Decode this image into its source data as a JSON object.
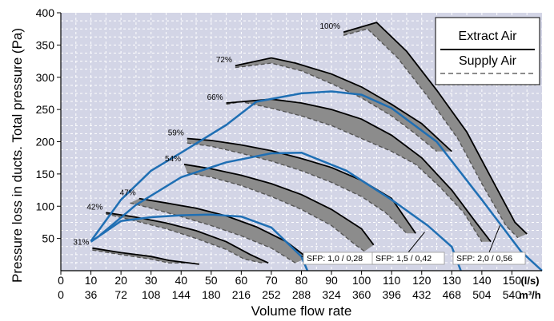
{
  "chart_data": {
    "type": "line",
    "ylabel": "Pressure loss in ducts. Total pressure (Pa)",
    "xlabel": "Volume flow rate",
    "xlim": [
      0,
      160
    ],
    "ylim": [
      0,
      400
    ],
    "x_ticks_ls": [
      "0",
      "10",
      "20",
      "30",
      "40",
      "50",
      "60",
      "70",
      "80",
      "90",
      "100",
      "110",
      "120",
      "130",
      "140",
      "150"
    ],
    "x_ticks_m3h": [
      "0",
      "36",
      "72",
      "108",
      "144",
      "180",
      "216",
      "252",
      "288",
      "324",
      "360",
      "396",
      "432",
      "468",
      "504",
      "540"
    ],
    "x_unit_ls": "(l/s)",
    "x_unit_m3h": "m³/h",
    "y_ticks": [
      "50",
      "100",
      "150",
      "200",
      "250",
      "300",
      "350",
      "400"
    ],
    "grid": true,
    "background_color": "#d3d5e6",
    "grid_color": "#ffffff",
    "legend": {
      "placement": "top-right",
      "entries": [
        {
          "label": "Extract Air",
          "style": "solid",
          "color": "#000000"
        },
        {
          "label": "Supply Air",
          "style": "dashed",
          "color": "#666666"
        }
      ]
    },
    "fan_speed_bands": [
      {
        "label": "31%",
        "extract": [
          [
            10.5,
            35
          ],
          [
            20,
            28
          ],
          [
            30,
            22
          ],
          [
            36,
            16
          ],
          [
            46,
            10
          ]
        ],
        "supply": [
          [
            10.5,
            32
          ],
          [
            20,
            25
          ],
          [
            30,
            18
          ],
          [
            36,
            12
          ],
          [
            43,
            12
          ]
        ]
      },
      {
        "label": "42%",
        "extract": [
          [
            15,
            90
          ],
          [
            25,
            83
          ],
          [
            35,
            74
          ],
          [
            45,
            62
          ],
          [
            55,
            45
          ],
          [
            63,
            25
          ],
          [
            69,
            12
          ]
        ],
        "supply": [
          [
            15,
            88
          ],
          [
            25,
            77
          ],
          [
            35,
            65
          ],
          [
            45,
            50
          ],
          [
            55,
            33
          ],
          [
            61,
            18
          ],
          [
            67,
            12
          ]
        ]
      },
      {
        "label": "47%",
        "extract": [
          [
            26,
            112
          ],
          [
            35,
            105
          ],
          [
            45,
            97
          ],
          [
            55,
            85
          ],
          [
            65,
            68
          ],
          [
            75,
            45
          ],
          [
            82,
            20
          ]
        ],
        "supply": [
          [
            23,
            105
          ],
          [
            30,
            97
          ],
          [
            40,
            84
          ],
          [
            50,
            70
          ],
          [
            60,
            54
          ],
          [
            70,
            35
          ],
          [
            78,
            12
          ]
        ]
      },
      {
        "label": "54%",
        "extract": [
          [
            41,
            165
          ],
          [
            50,
            158
          ],
          [
            60,
            148
          ],
          [
            70,
            135
          ],
          [
            80,
            118
          ],
          [
            90,
            95
          ],
          [
            100,
            65
          ],
          [
            104,
            40
          ]
        ],
        "supply": [
          [
            42,
            152
          ],
          [
            50,
            145
          ],
          [
            60,
            132
          ],
          [
            70,
            115
          ],
          [
            80,
            95
          ],
          [
            90,
            70
          ],
          [
            98,
            40
          ],
          [
            101,
            30
          ]
        ]
      },
      {
        "label": "59%",
        "extract": [
          [
            42,
            205
          ],
          [
            50,
            202
          ],
          [
            60,
            195
          ],
          [
            70,
            186
          ],
          [
            80,
            174
          ],
          [
            90,
            160
          ],
          [
            100,
            140
          ],
          [
            110,
            112
          ],
          [
            118,
            58
          ]
        ],
        "supply": [
          [
            42,
            198
          ],
          [
            50,
            193
          ],
          [
            60,
            182
          ],
          [
            70,
            170
          ],
          [
            80,
            155
          ],
          [
            90,
            137
          ],
          [
            100,
            115
          ],
          [
            108,
            90
          ],
          [
            115,
            58
          ]
        ]
      },
      {
        "label": "66%",
        "extract": [
          [
            55,
            260
          ],
          [
            70,
            266
          ],
          [
            80,
            260
          ],
          [
            90,
            250
          ],
          [
            100,
            235
          ],
          [
            110,
            210
          ],
          [
            120,
            175
          ],
          [
            130,
            125
          ],
          [
            138,
            75
          ],
          [
            143,
            45
          ]
        ],
        "supply": [
          [
            55,
            258
          ],
          [
            60,
            262
          ],
          [
            70,
            252
          ],
          [
            80,
            240
          ],
          [
            90,
            225
          ],
          [
            100,
            205
          ],
          [
            110,
            185
          ],
          [
            118,
            165
          ],
          [
            126,
            130
          ],
          [
            134,
            90
          ],
          [
            140,
            45
          ]
        ]
      },
      {
        "label": "72%",
        "extract": [
          [
            58,
            318
          ],
          [
            70,
            330
          ],
          [
            78,
            322
          ],
          [
            90,
            305
          ],
          [
            100,
            285
          ],
          [
            110,
            258
          ],
          [
            120,
            228
          ],
          [
            130,
            185
          ]
        ],
        "supply": [
          [
            58,
            315
          ],
          [
            70,
            322
          ],
          [
            80,
            310
          ],
          [
            90,
            290
          ],
          [
            100,
            268
          ],
          [
            110,
            240
          ],
          [
            118,
            212
          ],
          [
            125,
            185
          ]
        ]
      },
      {
        "label": "100%",
        "extract": [
          [
            94,
            370
          ],
          [
            105,
            385
          ],
          [
            115,
            340
          ],
          [
            125,
            280
          ],
          [
            135,
            215
          ],
          [
            143,
            145
          ],
          [
            151,
            75
          ],
          [
            155,
            57
          ]
        ],
        "supply": [
          [
            94,
            365
          ],
          [
            102,
            375
          ],
          [
            112,
            330
          ],
          [
            122,
            270
          ],
          [
            132,
            205
          ],
          [
            140,
            135
          ],
          [
            148,
            70
          ],
          [
            152,
            51
          ]
        ]
      }
    ],
    "system_curves": [
      {
        "label": "SFP: 1,0 / 0,28",
        "points": [
          [
            10,
            45
          ],
          [
            20,
            77
          ],
          [
            30,
            83
          ],
          [
            40,
            86
          ],
          [
            50,
            87
          ],
          [
            60,
            84
          ],
          [
            70,
            67
          ],
          [
            80,
            22
          ],
          [
            82,
            0
          ]
        ]
      },
      {
        "label": "SFP: 1,5 / 0,42",
        "points": [
          [
            13,
            55
          ],
          [
            25,
            102
          ],
          [
            40,
            145
          ],
          [
            55,
            168
          ],
          [
            70,
            182
          ],
          [
            80,
            183
          ],
          [
            95,
            155
          ],
          [
            110,
            110
          ],
          [
            122,
            70
          ],
          [
            130,
            37
          ],
          [
            133,
            0
          ]
        ]
      },
      {
        "label": "SFP: 2,0 / 0,56",
        "points": [
          [
            10,
            46
          ],
          [
            20,
            110
          ],
          [
            30,
            155
          ],
          [
            40,
            183
          ],
          [
            55,
            226
          ],
          [
            65,
            262
          ],
          [
            80,
            275
          ],
          [
            90,
            278
          ],
          [
            100,
            273
          ],
          [
            110,
            252
          ],
          [
            125,
            200
          ],
          [
            140,
            110
          ],
          [
            153,
            30
          ],
          [
            160,
            0
          ]
        ]
      }
    ]
  }
}
